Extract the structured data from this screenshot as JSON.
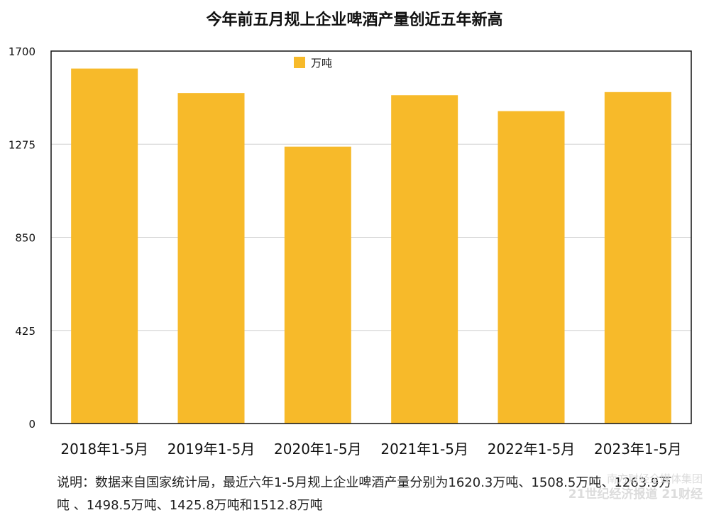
{
  "chart_data": {
    "type": "bar",
    "title": "今年前五月规上企业啤酒产量创近五年新高",
    "categories": [
      "2018年1-5月",
      "2019年1-5月",
      "2020年1-5月",
      "2021年1-5月",
      "2022年1-5月",
      "2023年1-5月"
    ],
    "series": [
      {
        "name": "万吨",
        "values": [
          1620.3,
          1508.5,
          1263.9,
          1498.5,
          1425.8,
          1512.8
        ]
      }
    ],
    "ylim": [
      0,
      1700
    ],
    "yticks": [
      0,
      425,
      850,
      1275,
      1700
    ],
    "grid": true,
    "legend": "top-center",
    "bar_color": "#F7BA2A"
  },
  "note": "说明：数据来自国家统计局，最近六年1-5月规上企业啤酒产量分别为1620.3万吨、1508.5万吨、1263.9万吨 、1498.5万吨、1425.8万吨和1512.8万吨",
  "watermark": {
    "line1": "南方财经全媒体集团",
    "line2": "21世纪经济报道 21财经"
  }
}
